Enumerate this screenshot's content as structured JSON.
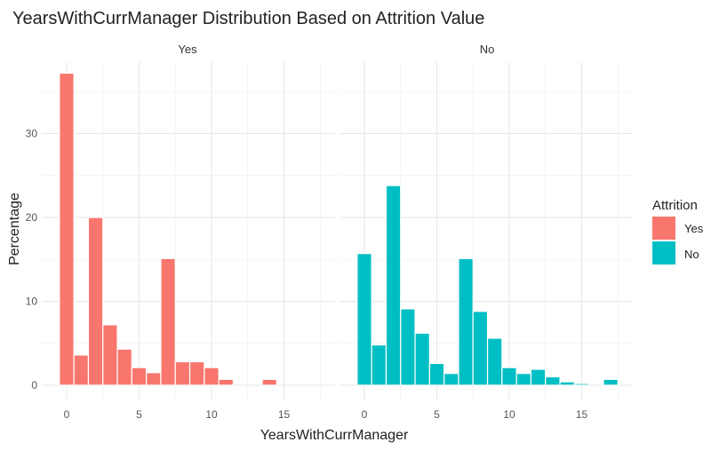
{
  "chart_data": {
    "type": "bar",
    "title": "YearsWithCurrManager Distribution Based on Attrition Value",
    "xlabel": "YearsWithCurrManager",
    "ylabel": "Percentage",
    "xlim": [
      -1,
      18
    ],
    "ylim": [
      0,
      40
    ],
    "x_ticks": [
      0,
      5,
      10,
      15
    ],
    "y_ticks": [
      0,
      10,
      20,
      30
    ],
    "grid": true,
    "legend": {
      "title": "Attrition",
      "position": "right",
      "entries": [
        {
          "label": "Yes",
          "color": "#F8766D"
        },
        {
          "label": "No",
          "color": "#00BFC4"
        }
      ]
    },
    "bin_width": 1,
    "x": [
      0,
      1,
      2,
      3,
      4,
      5,
      6,
      7,
      8,
      9,
      10,
      11,
      12,
      13,
      14,
      15,
      16,
      17
    ],
    "facets": [
      {
        "label": "Yes",
        "color": "#F8766D",
        "values": [
          37.2,
          3.6,
          20.0,
          7.2,
          4.3,
          2.1,
          1.5,
          15.1,
          2.8,
          2.8,
          2.1,
          0.7,
          0,
          0,
          0.7,
          0,
          0,
          0
        ]
      },
      {
        "label": "No",
        "color": "#00BFC4",
        "values": [
          15.7,
          4.8,
          23.8,
          9.1,
          6.2,
          2.6,
          1.4,
          15.1,
          8.8,
          5.6,
          2.1,
          1.4,
          1.9,
          1.0,
          0.4,
          0.2,
          0,
          0.7
        ]
      }
    ]
  }
}
